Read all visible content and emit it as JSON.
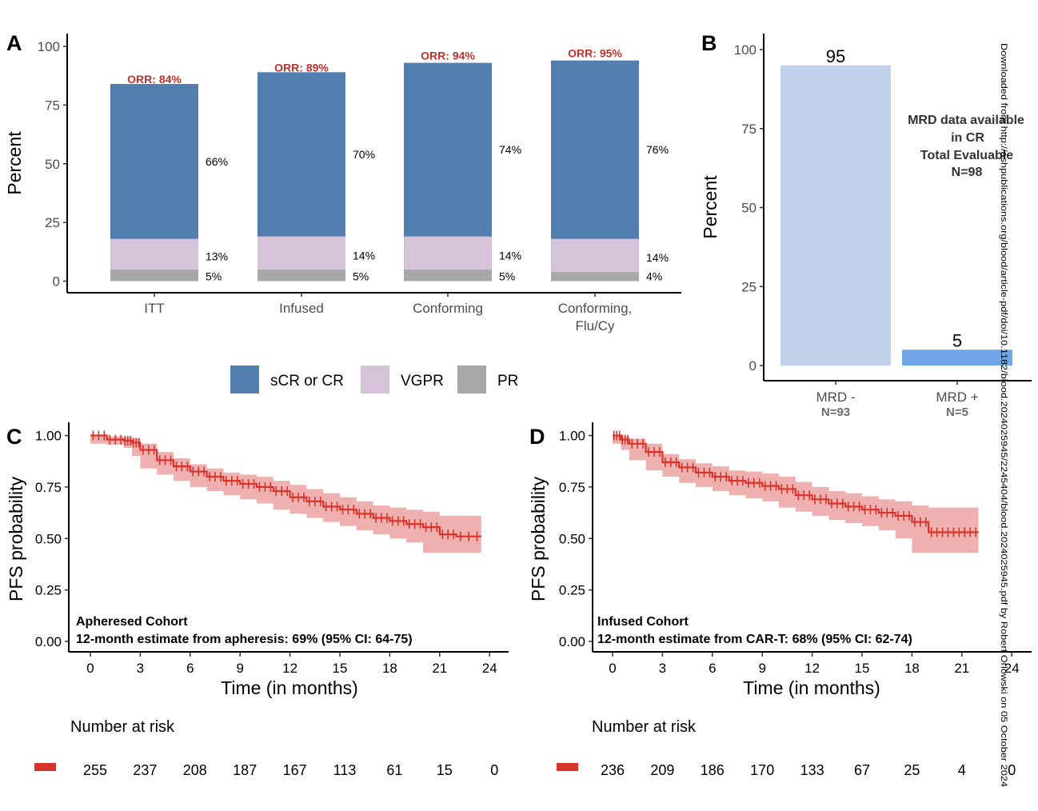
{
  "colors": {
    "scr_cr": "#537fb0",
    "vgpr": "#d6c3da",
    "pr": "#a8a8a8",
    "orr": "#c0302b",
    "mrd_neg": "#c0d2eb",
    "mrd_pos": "#6fa6e6",
    "km_line": "#d9342b",
    "km_ci": "#eeb1b0"
  },
  "watermark": "Downloaded from http://ashpublications.org/blood/article-pdf/doi/10.1182/blood.2024025945/2245404/blood.2024025945.pdf by Robert Orlowski on 05 October 2024",
  "chart_data": [
    {
      "panel": "A",
      "type": "bar",
      "stacked": true,
      "ylabel": "Percent",
      "ylim": [
        0,
        100
      ],
      "yticks": [
        "0",
        "25",
        "50",
        "75",
        "100"
      ],
      "categories": [
        "ITT",
        "Infused",
        "Conforming",
        "Conforming,\nFlu/Cy"
      ],
      "series": [
        {
          "name": "PR",
          "values": [
            5,
            5,
            5,
            4
          ],
          "labels": [
            "5%",
            "5%",
            "5%",
            "4%"
          ]
        },
        {
          "name": "VGPR",
          "values": [
            13,
            14,
            14,
            14
          ],
          "labels": [
            "13%",
            "14%",
            "14%",
            "14%"
          ]
        },
        {
          "name": "sCR or CR",
          "values": [
            66,
            70,
            74,
            76
          ],
          "labels": [
            "66%",
            "70%",
            "74%",
            "76%"
          ]
        }
      ],
      "orr_labels": [
        "ORR: 84%",
        "ORR: 89%",
        "ORR: 94%",
        "ORR: 95%"
      ],
      "orr_values": [
        84,
        89,
        94,
        95
      ],
      "legend": [
        "sCR or CR",
        "VGPR",
        "PR"
      ],
      "legend_position": "bottom",
      "grid": false
    },
    {
      "panel": "B",
      "type": "bar",
      "ylabel": "Percent",
      "ylim": [
        0,
        100
      ],
      "yticks": [
        "0",
        "25",
        "50",
        "75",
        "100"
      ],
      "categories": [
        "MRD -",
        "MRD +"
      ],
      "category_sublabels": [
        "N=93",
        "N=5"
      ],
      "values": [
        95,
        5
      ],
      "value_labels": [
        "95",
        "5"
      ],
      "annotation": [
        "MRD data available",
        "in CR",
        "Total Evaluable",
        "N=98"
      ],
      "grid": false
    },
    {
      "panel": "C",
      "type": "line",
      "subtype": "kaplan-meier",
      "xlabel": "Time (in months)",
      "ylabel": "PFS probability",
      "xlim": [
        0,
        24
      ],
      "ylim": [
        0,
        1
      ],
      "xticks": [
        "0",
        "3",
        "6",
        "9",
        "12",
        "15",
        "18",
        "21",
        "24"
      ],
      "yticks": [
        "0.00",
        "0.25",
        "0.50",
        "0.75",
        "1.00"
      ],
      "series": [
        {
          "x": [
            0,
            1,
            2,
            2.5,
            3,
            4,
            5,
            6,
            7,
            8,
            9,
            10,
            11,
            12,
            13,
            14,
            15,
            16,
            17,
            18,
            19,
            20,
            21,
            22,
            23.5
          ],
          "y": [
            1.0,
            0.98,
            0.975,
            0.965,
            0.93,
            0.88,
            0.85,
            0.825,
            0.8,
            0.78,
            0.765,
            0.75,
            0.73,
            0.7,
            0.68,
            0.655,
            0.64,
            0.62,
            0.6,
            0.585,
            0.57,
            0.555,
            0.52,
            0.51,
            0.51
          ],
          "ci_low": [
            1.0,
            0.96,
            0.955,
            0.94,
            0.9,
            0.84,
            0.81,
            0.78,
            0.75,
            0.73,
            0.71,
            0.69,
            0.67,
            0.64,
            0.62,
            0.6,
            0.58,
            0.56,
            0.54,
            0.52,
            0.5,
            0.48,
            0.43,
            0.43,
            0.43
          ],
          "ci_high": [
            1.0,
            0.995,
            0.99,
            0.985,
            0.96,
            0.92,
            0.89,
            0.86,
            0.84,
            0.82,
            0.81,
            0.8,
            0.78,
            0.76,
            0.74,
            0.72,
            0.7,
            0.68,
            0.66,
            0.65,
            0.64,
            0.63,
            0.61,
            0.61,
            0.61
          ]
        }
      ],
      "annotation": [
        "Apheresed Cohort",
        "12-month estimate from apheresis: 69% (95% CI: 64-75)"
      ],
      "risk_title": "Number at risk",
      "risk_times": [
        0,
        3,
        6,
        9,
        12,
        15,
        18,
        21,
        24
      ],
      "risk_values": [
        "255",
        "237",
        "208",
        "187",
        "167",
        "113",
        "61",
        "15",
        "0"
      ],
      "grid": false
    },
    {
      "panel": "D",
      "type": "line",
      "subtype": "kaplan-meier",
      "xlabel": "Time (in months)",
      "ylabel": "PFS probability",
      "xlim": [
        0,
        24
      ],
      "ylim": [
        0,
        1
      ],
      "xticks": [
        "0",
        "3",
        "6",
        "9",
        "12",
        "15",
        "18",
        "21",
        "24"
      ],
      "yticks": [
        "0.00",
        "0.25",
        "0.50",
        "0.75",
        "1.00"
      ],
      "series": [
        {
          "x": [
            0,
            0.5,
            1,
            2,
            3,
            4,
            5,
            6,
            7,
            8,
            9,
            10,
            11,
            12,
            13,
            14,
            15,
            16,
            17,
            18,
            19,
            20,
            21,
            22
          ],
          "y": [
            1.0,
            0.98,
            0.96,
            0.92,
            0.87,
            0.845,
            0.82,
            0.8,
            0.78,
            0.77,
            0.755,
            0.74,
            0.71,
            0.69,
            0.67,
            0.655,
            0.64,
            0.625,
            0.61,
            0.58,
            0.53,
            0.53,
            0.53,
            0.53
          ],
          "ci_low": [
            1.0,
            0.96,
            0.93,
            0.88,
            0.83,
            0.8,
            0.77,
            0.75,
            0.73,
            0.71,
            0.695,
            0.68,
            0.65,
            0.63,
            0.61,
            0.59,
            0.575,
            0.56,
            0.54,
            0.5,
            0.43,
            0.43,
            0.43,
            0.43
          ],
          "ci_high": [
            1.0,
            0.995,
            0.985,
            0.96,
            0.91,
            0.885,
            0.865,
            0.85,
            0.83,
            0.825,
            0.815,
            0.8,
            0.775,
            0.75,
            0.73,
            0.72,
            0.705,
            0.69,
            0.68,
            0.66,
            0.65,
            0.65,
            0.65,
            0.65
          ]
        }
      ],
      "annotation": [
        "Infused Cohort",
        "12-month estimate from CAR-T: 68% (95% CI: 62-74)"
      ],
      "risk_title": "Number at risk",
      "risk_times": [
        0,
        3,
        6,
        9,
        12,
        15,
        18,
        21,
        24
      ],
      "risk_values": [
        "236",
        "209",
        "186",
        "170",
        "133",
        "67",
        "25",
        "4",
        "0"
      ],
      "grid": false
    }
  ]
}
